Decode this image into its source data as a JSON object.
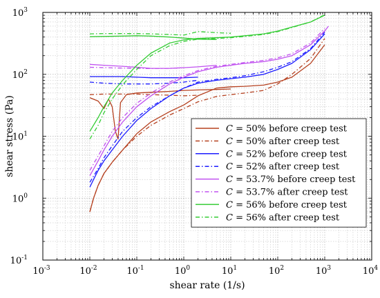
{
  "chart_data": {
    "type": "line",
    "title": "",
    "xlabel": "shear rate (1/s)",
    "ylabel": "shear stress (Pa)",
    "xscale": "log",
    "yscale": "log",
    "xlim": [
      0.001,
      10000
    ],
    "ylim": [
      0.1,
      1000
    ],
    "grid": true,
    "x_ticks": [
      {
        "base": "10",
        "exp": "-3"
      },
      {
        "base": "10",
        "exp": "-2"
      },
      {
        "base": "10",
        "exp": "-1"
      },
      {
        "base": "10",
        "exp": "0"
      },
      {
        "base": "10",
        "exp": "1"
      },
      {
        "base": "10",
        "exp": "2"
      },
      {
        "base": "10",
        "exp": "3"
      },
      {
        "base": "10",
        "exp": "4"
      }
    ],
    "y_ticks": [
      {
        "base": "10",
        "exp": "-1"
      },
      {
        "base": "10",
        "exp": "0"
      },
      {
        "base": "10",
        "exp": "1"
      },
      {
        "base": "10",
        "exp": "2"
      },
      {
        "base": "10",
        "exp": "3"
      }
    ],
    "legend_position": "center-right",
    "series": [
      {
        "name": "C = 50% before creep test",
        "color": "#b5401f",
        "dash": "solid",
        "points": [
          [
            0.01,
            0.6
          ],
          [
            0.012,
            1.0
          ],
          [
            0.015,
            1.6
          ],
          [
            0.02,
            2.5
          ],
          [
            0.03,
            3.8
          ],
          [
            0.05,
            6
          ],
          [
            0.1,
            11
          ],
          [
            0.2,
            17
          ],
          [
            0.5,
            25
          ],
          [
            1,
            32
          ],
          [
            2,
            45
          ],
          [
            5,
            60
          ],
          [
            10,
            63
          ],
          [
            20,
            64
          ],
          [
            50,
            67
          ],
          [
            100,
            75
          ],
          [
            200,
            90
          ],
          [
            500,
            150
          ],
          [
            1000,
            300
          ]
        ]
      },
      {
        "name": "C = 50% before creep test",
        "color": "#b5401f",
        "dash": "solid",
        "points": [
          [
            0.01,
            42
          ],
          [
            0.015,
            37
          ],
          [
            0.02,
            28
          ],
          [
            0.025,
            40
          ],
          [
            0.03,
            30
          ],
          [
            0.035,
            12
          ],
          [
            0.04,
            9
          ],
          [
            0.045,
            35
          ],
          [
            0.06,
            47
          ],
          [
            0.1,
            50
          ],
          [
            0.3,
            52
          ],
          [
            0.5,
            53
          ],
          [
            1,
            55
          ],
          [
            2,
            56
          ],
          [
            5,
            57
          ],
          [
            10,
            58
          ]
        ]
      },
      {
        "name": "C = 50% after creep test",
        "color": "#b5401f",
        "dash": "dashdot",
        "points": [
          [
            0.01,
            0.6
          ],
          [
            0.012,
            1.0
          ],
          [
            0.015,
            1.6
          ],
          [
            0.02,
            2.5
          ],
          [
            0.03,
            3.8
          ],
          [
            0.05,
            6
          ],
          [
            0.1,
            10
          ],
          [
            0.2,
            15
          ],
          [
            0.5,
            22
          ],
          [
            1,
            28
          ],
          [
            2,
            36
          ],
          [
            5,
            44
          ],
          [
            10,
            47
          ],
          [
            20,
            50
          ],
          [
            50,
            55
          ],
          [
            100,
            70
          ],
          [
            200,
            100
          ],
          [
            500,
            180
          ],
          [
            1000,
            380
          ]
        ]
      },
      {
        "name": "C = 50% after creep test",
        "color": "#b5401f",
        "dash": "dashdot",
        "points": [
          [
            0.01,
            47
          ],
          [
            0.02,
            48
          ],
          [
            0.05,
            48
          ],
          [
            0.1,
            48
          ],
          [
            0.2,
            47
          ],
          [
            0.5,
            46
          ],
          [
            1,
            45
          ],
          [
            2,
            46
          ]
        ]
      },
      {
        "name": "C = 52% before creep test",
        "color": "#1a1aff",
        "dash": "solid",
        "points": [
          [
            0.01,
            1.5
          ],
          [
            0.012,
            2.0
          ],
          [
            0.015,
            2.8
          ],
          [
            0.02,
            4
          ],
          [
            0.03,
            6
          ],
          [
            0.05,
            10
          ],
          [
            0.1,
            18
          ],
          [
            0.2,
            28
          ],
          [
            0.5,
            45
          ],
          [
            1,
            60
          ],
          [
            2,
            72
          ],
          [
            5,
            80
          ],
          [
            10,
            85
          ],
          [
            20,
            90
          ],
          [
            50,
            100
          ],
          [
            100,
            120
          ],
          [
            200,
            150
          ],
          [
            500,
            250
          ],
          [
            1000,
            450
          ]
        ]
      },
      {
        "name": "C = 52% before creep test",
        "color": "#1a1aff",
        "dash": "solid",
        "points": [
          [
            0.01,
            92
          ],
          [
            0.02,
            92
          ],
          [
            0.05,
            92
          ],
          [
            0.1,
            90
          ],
          [
            0.2,
            88
          ],
          [
            0.5,
            88
          ],
          [
            1,
            88
          ],
          [
            2,
            90
          ]
        ]
      },
      {
        "name": "C = 52% after creep test",
        "color": "#1a1aff",
        "dash": "dashdot",
        "points": [
          [
            0.01,
            1.8
          ],
          [
            0.015,
            3
          ],
          [
            0.02,
            4.5
          ],
          [
            0.03,
            7
          ],
          [
            0.05,
            12
          ],
          [
            0.1,
            20
          ],
          [
            0.2,
            30
          ],
          [
            0.5,
            45
          ],
          [
            1,
            60
          ],
          [
            2,
            75
          ],
          [
            5,
            83
          ],
          [
            10,
            88
          ],
          [
            20,
            95
          ],
          [
            50,
            110
          ],
          [
            100,
            130
          ],
          [
            200,
            160
          ],
          [
            500,
            260
          ],
          [
            1000,
            480
          ]
        ]
      },
      {
        "name": "C = 52% after creep test",
        "color": "#1a1aff",
        "dash": "dashdot",
        "points": [
          [
            0.01,
            75
          ],
          [
            0.02,
            72
          ],
          [
            0.05,
            70
          ],
          [
            0.1,
            70
          ],
          [
            0.2,
            70
          ],
          [
            0.5,
            72
          ],
          [
            1,
            75
          ],
          [
            2,
            80
          ]
        ]
      },
      {
        "name": "C = 53.7% before creep test",
        "color": "#c050f0",
        "dash": "solid",
        "points": [
          [
            0.01,
            2.3
          ],
          [
            0.015,
            4
          ],
          [
            0.02,
            6
          ],
          [
            0.03,
            10
          ],
          [
            0.05,
            17
          ],
          [
            0.1,
            30
          ],
          [
            0.2,
            45
          ],
          [
            0.5,
            70
          ],
          [
            1,
            90
          ],
          [
            2,
            110
          ],
          [
            5,
            130
          ],
          [
            10,
            140
          ],
          [
            20,
            150
          ],
          [
            50,
            160
          ],
          [
            100,
            175
          ],
          [
            200,
            200
          ],
          [
            500,
            300
          ],
          [
            1000,
            500
          ],
          [
            1200,
            600
          ]
        ]
      },
      {
        "name": "C = 53.7% before creep test",
        "color": "#c050f0",
        "dash": "solid",
        "points": [
          [
            0.01,
            145
          ],
          [
            0.02,
            140
          ],
          [
            0.05,
            135
          ],
          [
            0.1,
            130
          ],
          [
            0.2,
            125
          ],
          [
            0.5,
            125
          ],
          [
            1,
            128
          ],
          [
            2,
            132
          ],
          [
            5,
            140
          ]
        ]
      },
      {
        "name": "C = 53.7% after creep test",
        "color": "#c050f0",
        "dash": "dashdot",
        "points": [
          [
            0.01,
            2.8
          ],
          [
            0.015,
            4.8
          ],
          [
            0.02,
            7
          ],
          [
            0.03,
            12
          ],
          [
            0.05,
            20
          ],
          [
            0.1,
            34
          ],
          [
            0.2,
            50
          ],
          [
            0.5,
            75
          ],
          [
            1,
            95
          ],
          [
            2,
            115
          ],
          [
            5,
            135
          ],
          [
            10,
            145
          ],
          [
            20,
            155
          ],
          [
            50,
            168
          ],
          [
            100,
            185
          ],
          [
            200,
            215
          ],
          [
            500,
            320
          ],
          [
            1000,
            550
          ]
        ]
      },
      {
        "name": "C = 53.7% after creep test",
        "color": "#c050f0",
        "dash": "dashdot",
        "points": [
          [
            0.01,
            130
          ],
          [
            0.02,
            128
          ],
          [
            0.05,
            126
          ],
          [
            0.1,
            125
          ],
          [
            0.2,
            124
          ],
          [
            0.5,
            125
          ],
          [
            1,
            128
          ]
        ]
      },
      {
        "name": "C = 56% before creep test",
        "color": "#33cc33",
        "dash": "solid",
        "points": [
          [
            0.01,
            12
          ],
          [
            0.015,
            20
          ],
          [
            0.02,
            30
          ],
          [
            0.03,
            50
          ],
          [
            0.05,
            80
          ],
          [
            0.1,
            140
          ],
          [
            0.2,
            220
          ],
          [
            0.5,
            320
          ],
          [
            1,
            360
          ],
          [
            2,
            380
          ],
          [
            5,
            390
          ],
          [
            10,
            400
          ],
          [
            20,
            420
          ],
          [
            50,
            450
          ],
          [
            100,
            500
          ],
          [
            200,
            580
          ],
          [
            500,
            700
          ],
          [
            1000,
            900
          ]
        ]
      },
      {
        "name": "C = 56% before creep test",
        "color": "#33cc33",
        "dash": "solid",
        "points": [
          [
            0.01,
            405
          ],
          [
            0.02,
            410
          ],
          [
            0.05,
            415
          ],
          [
            0.1,
            420
          ],
          [
            0.2,
            415
          ],
          [
            0.5,
            400
          ],
          [
            1,
            385
          ],
          [
            2,
            370
          ],
          [
            5,
            365
          ]
        ]
      },
      {
        "name": "C = 56% after creep test",
        "color": "#33cc33",
        "dash": "dashdot",
        "points": [
          [
            0.01,
            9
          ],
          [
            0.015,
            15
          ],
          [
            0.02,
            24
          ],
          [
            0.03,
            40
          ],
          [
            0.05,
            68
          ],
          [
            0.1,
            120
          ],
          [
            0.2,
            200
          ],
          [
            0.5,
            290
          ],
          [
            1,
            340
          ],
          [
            2,
            370
          ],
          [
            5,
            380
          ],
          [
            10,
            390
          ],
          [
            20,
            410
          ],
          [
            50,
            440
          ],
          [
            100,
            490
          ],
          [
            200,
            570
          ],
          [
            500,
            700
          ],
          [
            1000,
            920
          ]
        ]
      },
      {
        "name": "C = 56% after creep test",
        "color": "#33cc33",
        "dash": "dashdot",
        "points": [
          [
            0.01,
            450
          ],
          [
            0.02,
            455
          ],
          [
            0.05,
            455
          ],
          [
            0.1,
            455
          ],
          [
            0.2,
            450
          ],
          [
            0.5,
            440
          ],
          [
            1,
            430
          ],
          [
            2,
            490
          ],
          [
            5,
            470
          ],
          [
            10,
            460
          ]
        ]
      }
    ],
    "legend": [
      {
        "prefix": "C",
        "text": " = 50% before creep test",
        "color": "#b5401f",
        "dash": "solid"
      },
      {
        "prefix": "C",
        "text": " = 50% after creep test",
        "color": "#b5401f",
        "dash": "dashdot"
      },
      {
        "prefix": "C",
        "text": " = 52% before creep test",
        "color": "#1a1aff",
        "dash": "solid"
      },
      {
        "prefix": "C",
        "text": " = 52% after creep test",
        "color": "#1a1aff",
        "dash": "dashdot"
      },
      {
        "prefix": "C",
        "text": " = 53.7% before creep test",
        "color": "#c050f0",
        "dash": "solid"
      },
      {
        "prefix": "C",
        "text": " = 53.7% after creep test",
        "color": "#c050f0",
        "dash": "dashdot"
      },
      {
        "prefix": "C",
        "text": " = 56% before creep test",
        "color": "#33cc33",
        "dash": "solid"
      },
      {
        "prefix": "C",
        "text": " = 56% after creep test",
        "color": "#33cc33",
        "dash": "dashdot"
      }
    ]
  }
}
